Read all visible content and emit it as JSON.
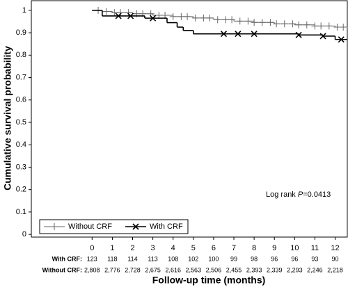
{
  "chart_data": {
    "type": "line",
    "step": "post",
    "xlabel": "Follow-up time (months)",
    "ylabel": "Cumulative survival probability",
    "xlim": [
      -3,
      12.6
    ],
    "xticks": [
      0,
      1,
      2,
      3,
      4,
      5,
      6,
      7,
      8,
      9,
      10,
      11,
      12
    ],
    "ylim": [
      -0.012,
      1.043
    ],
    "yticks": [
      0,
      0.1,
      0.2,
      0.3,
      0.4,
      0.5,
      0.6,
      0.7,
      0.8,
      0.9,
      1
    ],
    "legend": "lower left",
    "series": [
      {
        "name": "Without CRF",
        "color": "#666666",
        "marker": "+",
        "x": [
          0,
          0.5,
          1,
          2,
          3,
          4,
          5,
          6,
          7,
          8,
          9,
          10,
          11,
          12,
          12.6
        ],
        "values": [
          1,
          0.995,
          0.99,
          0.985,
          0.978,
          0.972,
          0.966,
          0.958,
          0.952,
          0.946,
          0.94,
          0.935,
          0.93,
          0.925,
          0.922
        ],
        "censored": [
          0.3,
          0.7,
          1.1,
          1.4,
          1.8,
          2.2,
          2.5,
          2.9,
          3.3,
          3.6,
          4.0,
          4.4,
          4.7,
          5.1,
          5.5,
          5.8,
          6.2,
          6.6,
          6.9,
          7.3,
          7.7,
          8.0,
          8.4,
          8.8,
          9.1,
          9.5,
          9.9,
          10.2,
          10.6,
          11.0,
          11.3,
          11.7,
          12.1,
          12.4
        ]
      },
      {
        "name": "With CRF",
        "color": "#000000",
        "marker": "x",
        "x": [
          0,
          0.5,
          2.6,
          3.7,
          4.2,
          4.5,
          5.0,
          10.2,
          11.4,
          12.0,
          12.6
        ],
        "values": [
          1,
          0.975,
          0.965,
          0.945,
          0.925,
          0.91,
          0.895,
          0.89,
          0.885,
          0.87,
          0.87
        ],
        "censored": [
          1.3,
          1.9,
          3.0,
          6.5,
          7.2,
          8.0,
          10.2,
          11.4,
          12.3
        ]
      }
    ],
    "annotation": {
      "before": "Log rank ",
      "italic": "P",
      "after": "=0.0413"
    },
    "risk_table": {
      "rows": [
        {
          "label": "With CRF:",
          "values": [
            123,
            118,
            114,
            113,
            108,
            102,
            100,
            99,
            98,
            96,
            96,
            93,
            90
          ]
        },
        {
          "label": "Without CRF:",
          "values": [
            "2,808",
            "2,776",
            "2,728",
            "2,675",
            "2,616",
            "2,563",
            "2,506",
            "2,455",
            "2,393",
            "2,339",
            "2,293",
            "2,246",
            "2,218"
          ]
        }
      ]
    }
  }
}
